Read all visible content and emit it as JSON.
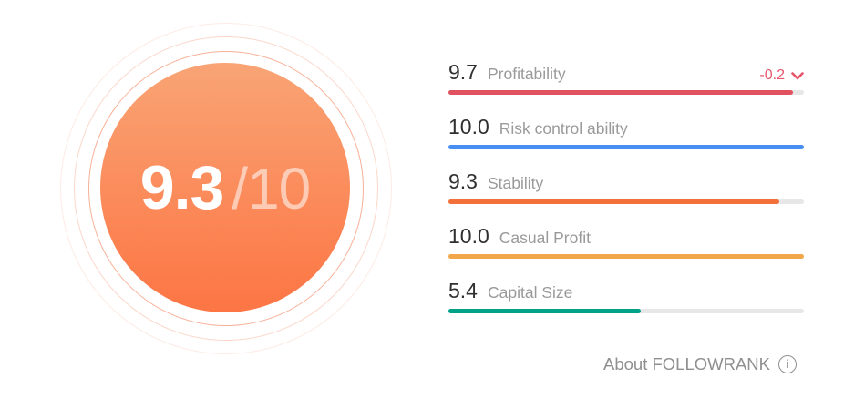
{
  "gauge": {
    "score": "9.3",
    "denominator": "/10"
  },
  "metrics": [
    {
      "score": "9.7",
      "label": "Profitability",
      "value": 9.7,
      "max": 10,
      "color": "#e0525f",
      "change": "-0.2"
    },
    {
      "score": "10.0",
      "label": "Risk control ability",
      "value": 10.0,
      "max": 10,
      "color": "#478ff3"
    },
    {
      "score": "9.3",
      "label": "Stability",
      "value": 9.3,
      "max": 10,
      "color": "#f3703b"
    },
    {
      "score": "10.0",
      "label": "Casual Profit",
      "value": 10.0,
      "max": 10,
      "color": "#f2a74b"
    },
    {
      "score": "5.4",
      "label": "Capital Size",
      "value": 5.4,
      "max": 10,
      "color": "#00a287"
    }
  ],
  "footer": {
    "about_label": "About FOLLOWRANK",
    "info_icon": "info-circle-icon"
  },
  "colors": {
    "bar_track": "#e7e7e7",
    "change_negative": "#e8566b",
    "score_text": "#303030",
    "label_text": "#9a9a9a",
    "footer_text": "#8f8f8f",
    "circle_gradient_top": "#f9a475",
    "circle_gradient_bottom": "#fd7544",
    "ring_tint": "#f27042"
  }
}
